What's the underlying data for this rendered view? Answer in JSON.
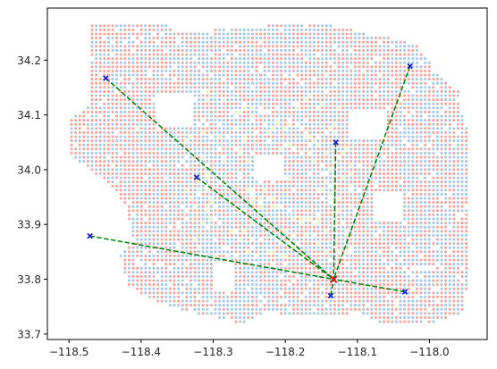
{
  "chart_data": {
    "type": "scatter",
    "title": "",
    "xlabel": "",
    "ylabel": "",
    "xlim": [
      -118.53,
      -117.92
    ],
    "ylim": [
      33.69,
      34.295
    ],
    "x_ticks": [
      -118.5,
      -118.4,
      -118.3,
      -118.2,
      -118.1,
      -118.0
    ],
    "x_tick_labels": [
      "−118.5",
      "−118.4",
      "−118.3",
      "−118.2",
      "−118.1",
      "−118.0"
    ],
    "y_ticks": [
      33.7,
      33.8,
      33.9,
      34.0,
      34.1,
      34.2
    ],
    "y_tick_labels": [
      "33.7",
      "33.8",
      "33.9",
      "34.0",
      "34.1",
      "34.2"
    ],
    "grid": false,
    "legend": false,
    "colors": {
      "background_points": "#f4a6a0",
      "background_points_alt": "#a9c8e4",
      "background_points_accent": "#e3efb5",
      "markers": "#1f1fcc",
      "hub": "#e01010",
      "lines": "#008000"
    },
    "hub": {
      "x": -118.133,
      "y": 33.8
    },
    "markers": [
      {
        "x": -118.449,
        "y": 34.167
      },
      {
        "x": -118.323,
        "y": 33.986
      },
      {
        "x": -118.471,
        "y": 33.879
      },
      {
        "x": -118.13,
        "y": 34.05
      },
      {
        "x": -118.027,
        "y": 34.189
      },
      {
        "x": -118.034,
        "y": 33.777
      },
      {
        "x": -118.137,
        "y": 33.77
      }
    ],
    "lines": [
      {
        "from": [
          -118.449,
          34.167
        ],
        "to": [
          -118.133,
          33.8
        ]
      },
      {
        "from": [
          -118.323,
          33.986
        ],
        "to": [
          -118.133,
          33.8
        ]
      },
      {
        "from": [
          -118.471,
          33.879
        ],
        "to": [
          -118.133,
          33.8
        ]
      },
      {
        "from": [
          -118.13,
          34.05
        ],
        "to": [
          -118.133,
          33.8
        ]
      },
      {
        "from": [
          -118.027,
          34.189
        ],
        "to": [
          -118.133,
          33.8
        ]
      },
      {
        "from": [
          -118.034,
          33.777
        ],
        "to": [
          -118.133,
          33.8
        ]
      },
      {
        "from": [
          -118.137,
          33.77
        ],
        "to": [
          -118.133,
          33.8
        ]
      }
    ],
    "background_region_outline": [
      [
        -118.47,
        34.27
      ],
      [
        -118.37,
        34.27
      ],
      [
        -118.35,
        34.25
      ],
      [
        -118.25,
        34.26
      ],
      [
        -118.16,
        34.27
      ],
      [
        -118.02,
        34.23
      ],
      [
        -117.98,
        34.16
      ],
      [
        -117.955,
        34.14
      ],
      [
        -117.955,
        34.1
      ],
      [
        -117.945,
        34.06
      ],
      [
        -117.945,
        33.8
      ],
      [
        -117.955,
        33.74
      ],
      [
        -118.0,
        33.72
      ],
      [
        -118.07,
        33.72
      ],
      [
        -118.1,
        33.74
      ],
      [
        -118.14,
        33.73
      ],
      [
        -118.23,
        33.74
      ],
      [
        -118.26,
        33.72
      ],
      [
        -118.33,
        33.74
      ],
      [
        -118.38,
        33.76
      ],
      [
        -118.42,
        33.79
      ],
      [
        -118.43,
        33.84
      ],
      [
        -118.41,
        33.87
      ],
      [
        -118.42,
        33.93
      ],
      [
        -118.44,
        33.97
      ],
      [
        -118.48,
        34.01
      ],
      [
        -118.5,
        34.03
      ],
      [
        -118.5,
        34.09
      ],
      [
        -118.47,
        34.12
      ],
      [
        -118.47,
        34.27
      ]
    ]
  }
}
